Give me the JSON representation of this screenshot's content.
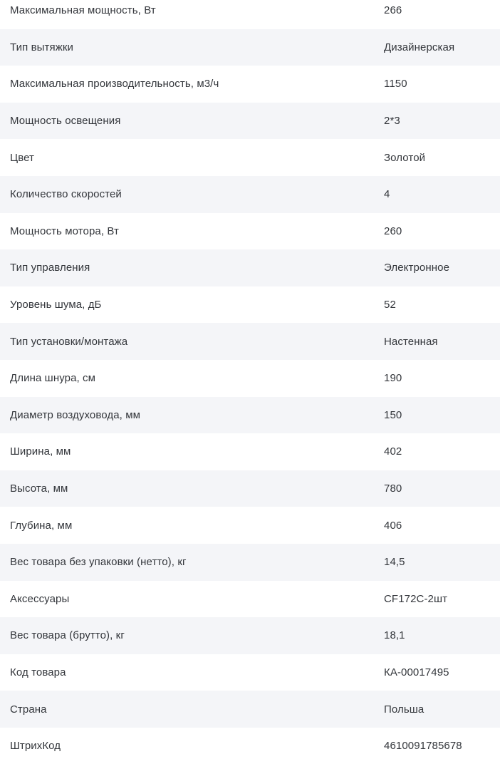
{
  "colors": {
    "row_alt_bg": "#f4f5f8",
    "row_bg": "#ffffff",
    "text": "#33363b"
  },
  "table": {
    "name": "product-specifications",
    "rows": [
      {
        "label": "Максимальная мощность, Вт",
        "value": "266"
      },
      {
        "label": "Тип вытяжки",
        "value": "Дизайнерская"
      },
      {
        "label": "Максимальная производительность, м3/ч",
        "value": "1150"
      },
      {
        "label": "Мощность освещения",
        "value": "2*3"
      },
      {
        "label": "Цвет",
        "value": "Золотой"
      },
      {
        "label": "Количество скоростей",
        "value": "4"
      },
      {
        "label": "Мощность мотора, Вт",
        "value": "260"
      },
      {
        "label": "Тип управления",
        "value": "Электронное"
      },
      {
        "label": "Уровень шума, дБ",
        "value": "52"
      },
      {
        "label": "Тип установки/монтажа",
        "value": "Настенная"
      },
      {
        "label": "Длина шнура, см",
        "value": "190"
      },
      {
        "label": "Диаметр воздуховода, мм",
        "value": "150"
      },
      {
        "label": "Ширина, мм",
        "value": "402"
      },
      {
        "label": "Высота, мм",
        "value": "780"
      },
      {
        "label": "Глубина, мм",
        "value": "406"
      },
      {
        "label": "Вес товара без упаковки (нетто), кг",
        "value": "14,5"
      },
      {
        "label": "Аксессуары",
        "value": "CF172C-2шт"
      },
      {
        "label": "Вес товара (брутто), кг",
        "value": "18,1"
      },
      {
        "label": "Код товара",
        "value": "КА-00017495"
      },
      {
        "label": "Страна",
        "value": "Польша"
      },
      {
        "label": "ШтрихКод",
        "value": "4610091785678"
      }
    ]
  }
}
